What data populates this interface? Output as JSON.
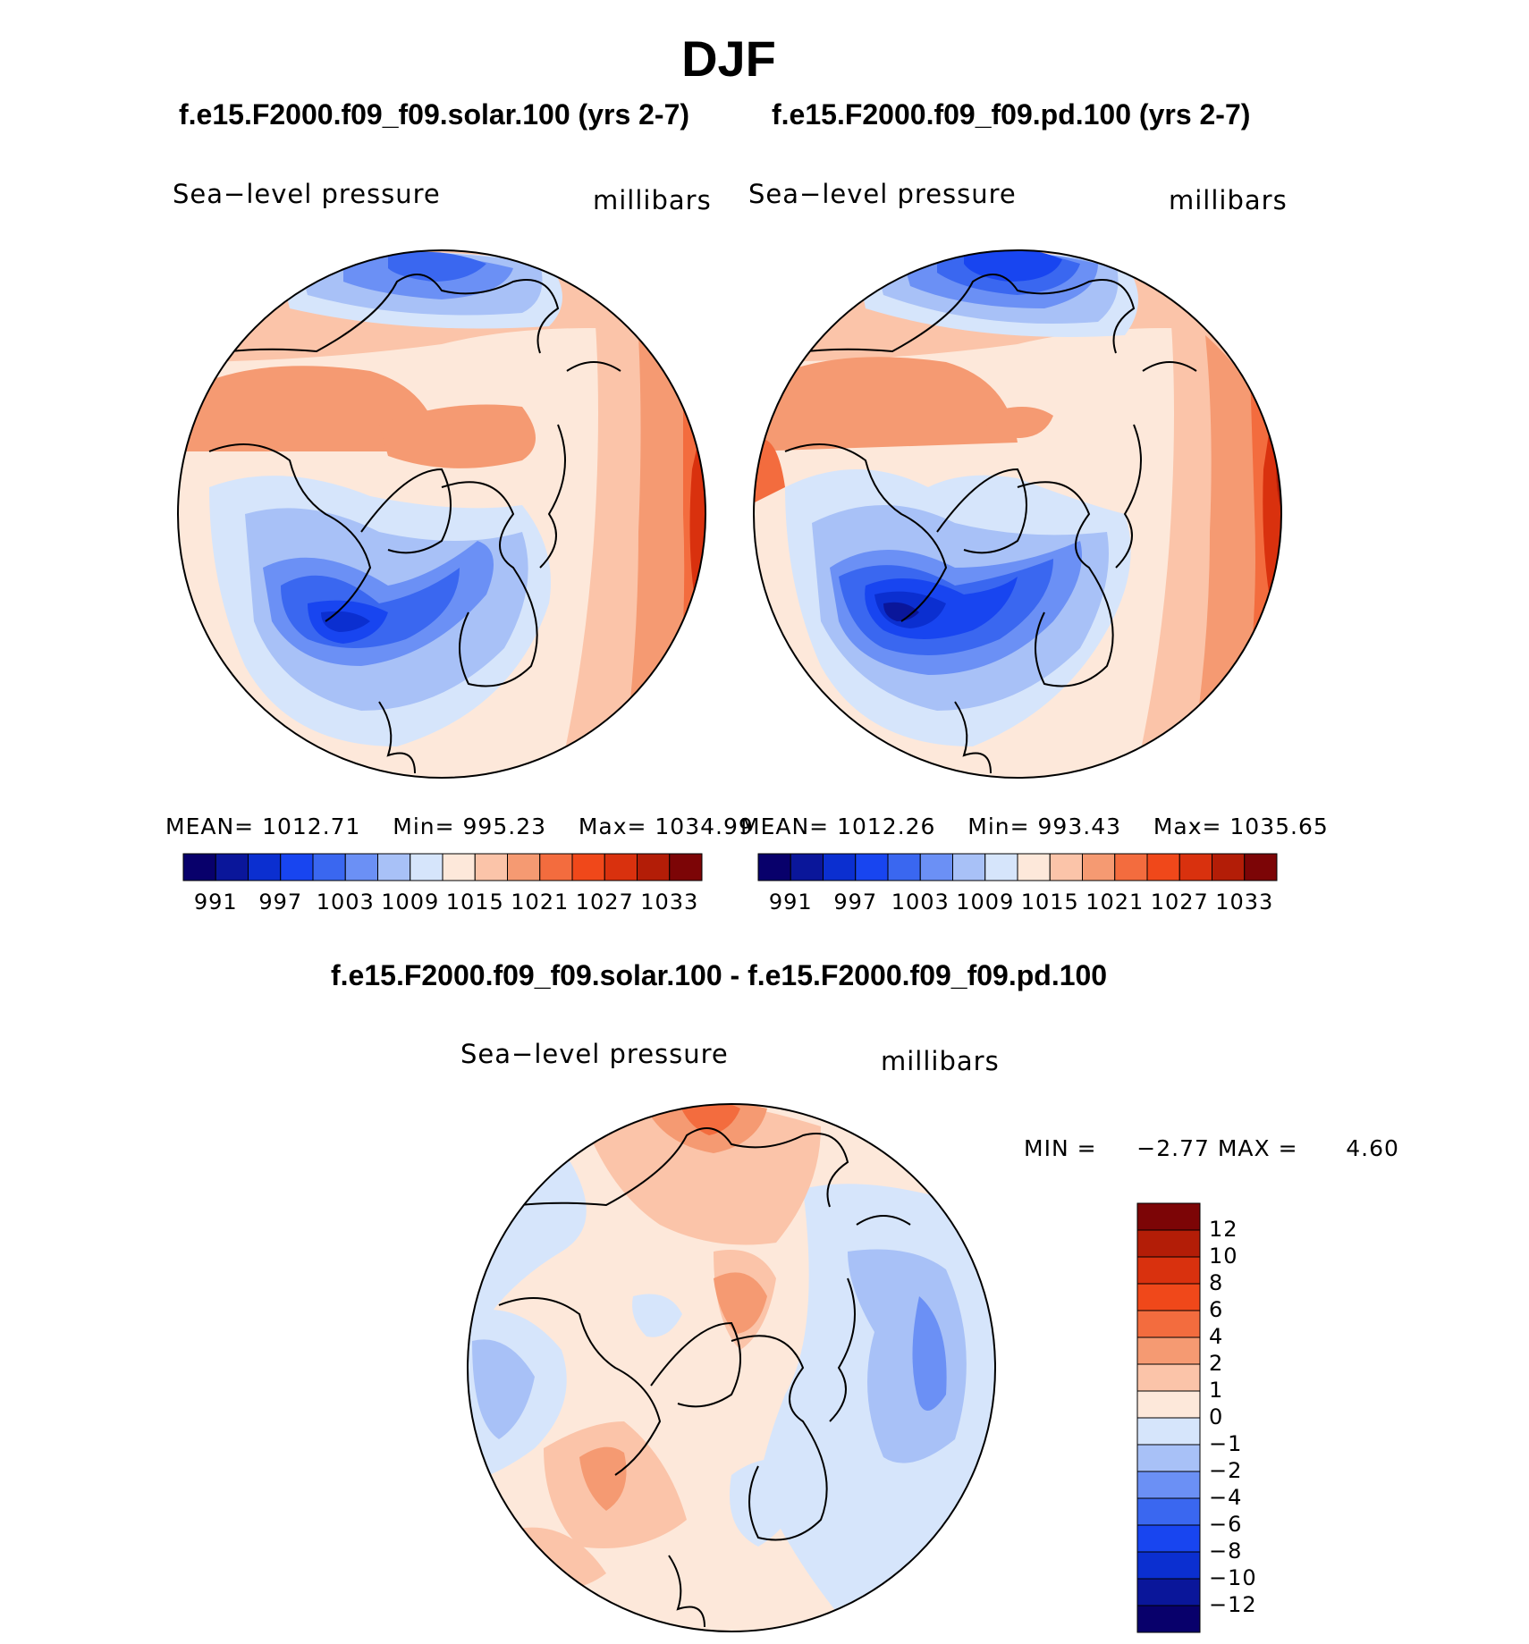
{
  "figure": {
    "title": "DJF"
  },
  "panels": [
    {
      "title": "f.e15.F2000.f09_f09.solar.100 (yrs 2-7)",
      "variable": "Sea−level pressure",
      "units": "millibars",
      "stats": {
        "mean_label": "MEAN=",
        "mean": "1012.71",
        "min_label": "Min=",
        "min": "995.23",
        "max_label": "Max=",
        "max": "1034.99"
      },
      "colorbar_ticks": [
        "991",
        "997",
        "1003",
        "1009",
        "1015",
        "1021",
        "1027",
        "1033"
      ]
    },
    {
      "title": "f.e15.F2000.f09_f09.pd.100 (yrs 2-7)",
      "variable": "Sea−level pressure",
      "units": "millibars",
      "stats": {
        "mean_label": "MEAN=",
        "mean": "1012.26",
        "min_label": "Min=",
        "min": "993.43",
        "max_label": "Max=",
        "max": "1035.65"
      },
      "colorbar_ticks": [
        "991",
        "997",
        "1003",
        "1009",
        "1015",
        "1021",
        "1027",
        "1033"
      ]
    },
    {
      "title": "f.e15.F2000.f09_f09.solar.100 - f.e15.F2000.f09_f09.pd.100",
      "variable": "Sea−level pressure",
      "units": "millibars",
      "stats": {
        "min_label": "MIN =",
        "min": "−2.77",
        "max_label": "MAX =",
        "max": "4.60"
      },
      "colorbar_ticks": [
        "12",
        "10",
        "8",
        "6",
        "4",
        "2",
        "1",
        "0",
        "−1",
        "−2",
        "−4",
        "−6",
        "−8",
        "−10",
        "−12"
      ]
    }
  ],
  "colors": {
    "abs_scale": [
      "#08006b",
      "#0a169a",
      "#0b2fd0",
      "#1845f0",
      "#3a67f0",
      "#6b90f5",
      "#a8c1f7",
      "#d6e5fb",
      "#fde8da",
      "#fbc4a9",
      "#f59a72",
      "#f36c3e",
      "#f0481a",
      "#d9310e",
      "#b31d07",
      "#7c0506"
    ],
    "diff_scale": [
      "#7c0506",
      "#b31d07",
      "#d9310e",
      "#f0481a",
      "#f36c3e",
      "#f59a72",
      "#fbc4a9",
      "#fde8da",
      "#d6e5fb",
      "#a8c1f7",
      "#6b90f5",
      "#3a67f0",
      "#1845f0",
      "#0b2fd0",
      "#0a169a",
      "#08006b"
    ]
  }
}
